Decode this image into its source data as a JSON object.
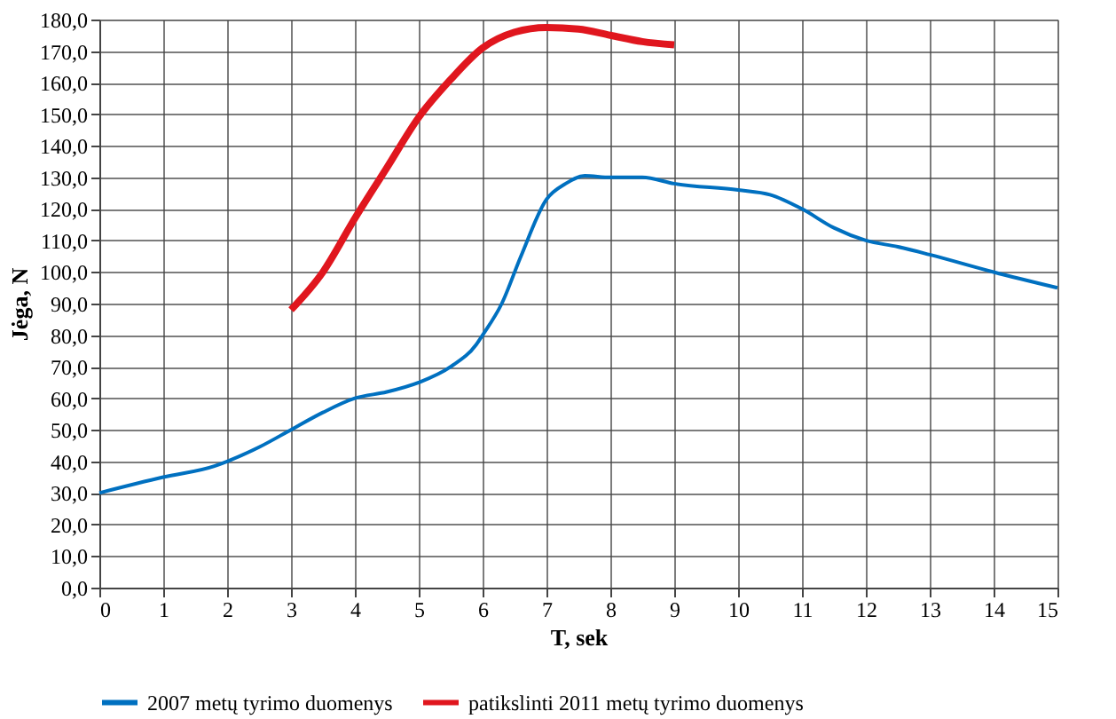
{
  "chart_data": {
    "type": "line",
    "xlabel": "T, sek",
    "ylabel": "Jėga, N",
    "xlim": [
      0,
      15
    ],
    "xticks": [
      0,
      1,
      2,
      3,
      4,
      5,
      6,
      7,
      8,
      9,
      10,
      11,
      12,
      13,
      14,
      15
    ],
    "ylim": [
      0,
      180
    ],
    "yticks": [
      {
        "value": 0,
        "label": "0,0"
      },
      {
        "value": 10,
        "label": "10,0"
      },
      {
        "value": 20,
        "label": "20,0"
      },
      {
        "value": 30,
        "label": "30,0"
      },
      {
        "value": 40,
        "label": "40,0"
      },
      {
        "value": 50,
        "label": "50,0"
      },
      {
        "value": 60,
        "label": "60,0"
      },
      {
        "value": 70,
        "label": "70,0"
      },
      {
        "value": 80,
        "label": "80,0"
      },
      {
        "value": 90,
        "label": "90,0"
      },
      {
        "value": 100,
        "label": "100,0"
      },
      {
        "value": 110,
        "label": "110,0"
      },
      {
        "value": 120,
        "label": "120,0"
      },
      {
        "value": 130,
        "label": "130,0"
      },
      {
        "value": 140,
        "label": "140,0"
      },
      {
        "value": 150,
        "label": "150,0"
      },
      {
        "value": 160,
        "label": "160,0"
      },
      {
        "value": 170,
        "label": "170,0"
      },
      {
        "value": 180,
        "label": "180,0"
      }
    ],
    "grid": true,
    "legend": "bottom",
    "marker": "none",
    "line_style": "solid",
    "series": [
      {
        "name": "2007 metų tyrimo duomenys",
        "color": "#0070c0",
        "x": [
          0,
          1,
          1.8,
          2,
          2.5,
          3,
          3.5,
          4,
          4.5,
          5,
          5.5,
          5.9,
          6,
          6.3,
          6.6,
          7,
          7.3,
          7.6,
          8,
          8.5,
          9,
          10,
          10.5,
          11,
          11.5,
          12,
          12.5,
          13,
          14,
          15
        ],
        "values": [
          30,
          35,
          38.5,
          40,
          44.5,
          50,
          55.5,
          60,
          62,
          65,
          70,
          77,
          80,
          90,
          105,
          123,
          128,
          130.5,
          130,
          130,
          128,
          126,
          124.5,
          120,
          114,
          110,
          108,
          105.5,
          100,
          95
        ]
      },
      {
        "name": "patikslinti 2011 metų tyrimo duomenys",
        "color": "#e0161e",
        "x": [
          3,
          3.5,
          4,
          4.5,
          5,
          5.5,
          6,
          6.5,
          7,
          7.5,
          8,
          8.5,
          9
        ],
        "values": [
          88,
          100,
          117,
          133,
          149,
          161,
          171,
          176,
          177.5,
          177,
          175,
          173,
          172
        ]
      }
    ]
  }
}
